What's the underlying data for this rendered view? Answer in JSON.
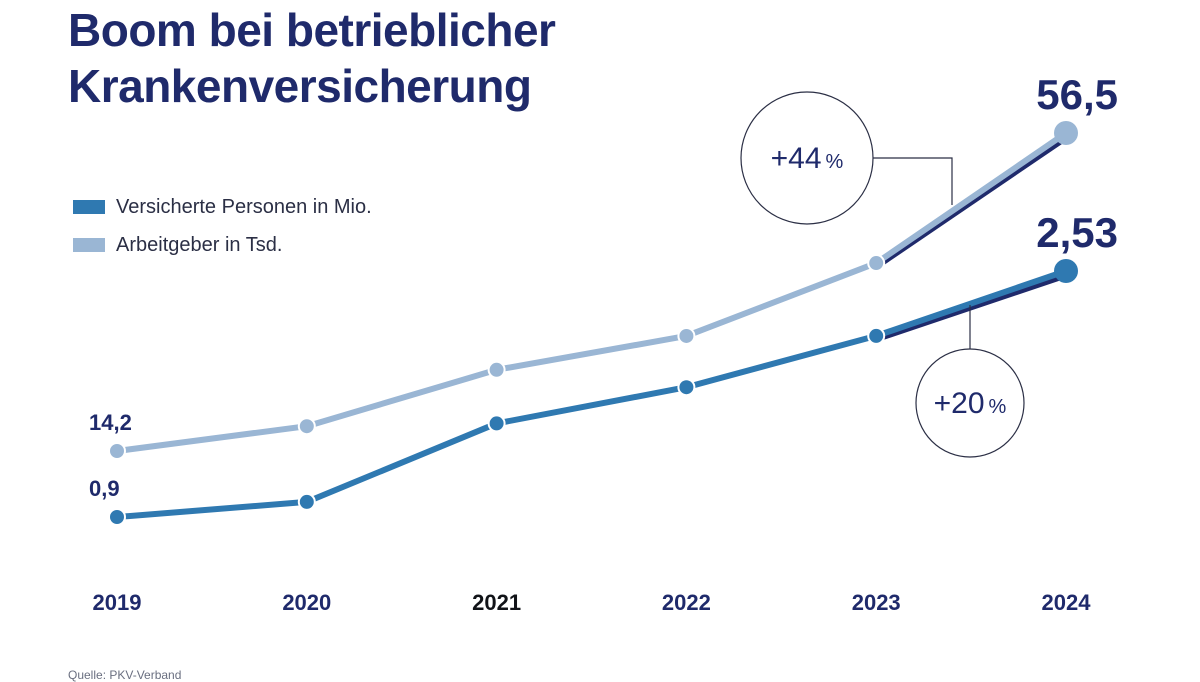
{
  "title": {
    "line1": "Boom bei betrieblicher",
    "line2": "Krankenversicherung"
  },
  "source": "Quelle: PKV-Verband",
  "colors": {
    "title": "#1f2a6b",
    "versicherte": "#2f79b1",
    "arbeitgeber": "#9ab6d4",
    "highlight": "#1f2a6b"
  },
  "chart_data": {
    "type": "line",
    "title": "Boom bei betrieblicher Krankenversicherung",
    "xlabel": "",
    "ylabel": "",
    "categories": [
      "2019",
      "2020",
      "2021",
      "2022",
      "2023",
      "2024"
    ],
    "emphasized_category": "2021",
    "series": [
      {
        "name": "Versicherte Personen in Mio.",
        "key": "versicherte",
        "values": [
          0.9,
          1.0,
          1.52,
          1.76,
          2.1,
          2.53
        ],
        "start_label": "0,9",
        "end_label": "2,53",
        "change_label": "+20",
        "change_unit": "%"
      },
      {
        "name": "Arbeitgeber in Tsd.",
        "key": "arbeitgeber",
        "values": [
          14.2,
          17.5,
          25.0,
          29.5,
          39.2,
          56.5
        ],
        "start_label": "14,2",
        "end_label": "56,5",
        "change_label": "+44",
        "change_unit": "%"
      }
    ],
    "legend_position": "left",
    "grid": false
  }
}
